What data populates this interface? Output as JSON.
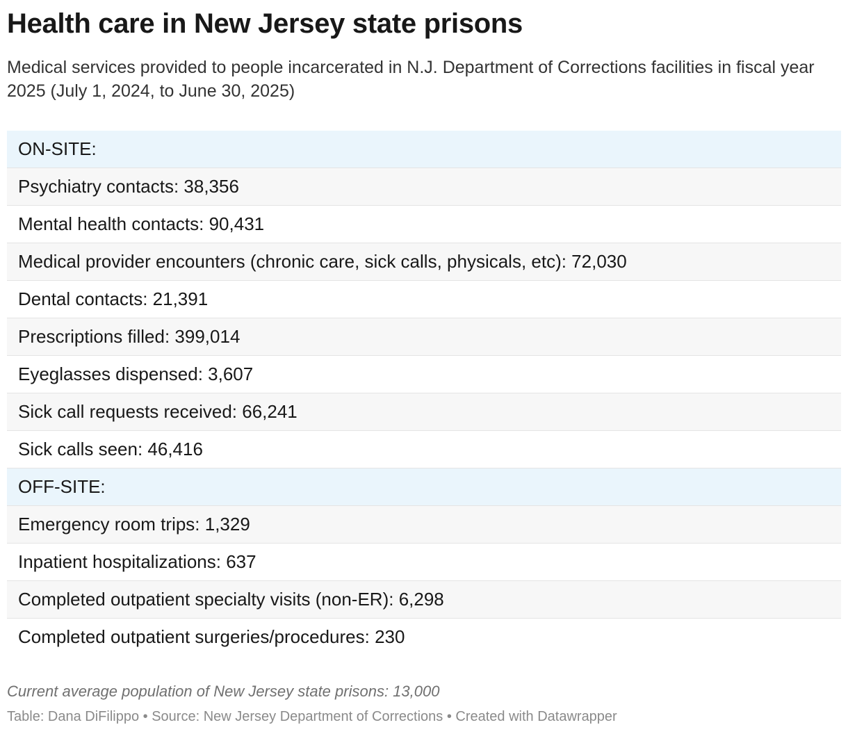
{
  "title": "Health care in New Jersey state prisons",
  "subtitle": "Medical services provided to people incarcerated in N.J. Department of Corrections facilities in fiscal year 2025 (July 1, 2024, to June 30, 2025)",
  "chart_data": {
    "type": "table",
    "rows": [
      {
        "kind": "section",
        "text": "ON-SITE:"
      },
      {
        "kind": "item",
        "text": "Psychiatry contacts: 38,356",
        "value": 38356
      },
      {
        "kind": "item",
        "text": "Mental health contacts: 90,431",
        "value": 90431
      },
      {
        "kind": "item",
        "text": "Medical provider encounters (chronic care, sick calls, physicals, etc): 72,030",
        "value": 72030
      },
      {
        "kind": "item",
        "text": "Dental contacts: 21,391",
        "value": 21391
      },
      {
        "kind": "item",
        "text": "Prescriptions filled: 399,014",
        "value": 399014
      },
      {
        "kind": "item",
        "text": "Eyeglasses dispensed: 3,607",
        "value": 3607
      },
      {
        "kind": "item",
        "text": "Sick call requests received: 66,241",
        "value": 66241
      },
      {
        "kind": "item",
        "text": "Sick calls seen: 46,416",
        "value": 46416
      },
      {
        "kind": "section",
        "text": "OFF-SITE:"
      },
      {
        "kind": "item",
        "text": "Emergency room trips: 1,329",
        "value": 1329
      },
      {
        "kind": "item",
        "text": "Inpatient hospitalizations: 637",
        "value": 637
      },
      {
        "kind": "item",
        "text": "Completed outpatient specialty visits (non-ER): 6,298",
        "value": 6298
      },
      {
        "kind": "item",
        "text": "Completed outpatient surgeries/procedures: 230",
        "value": 230
      }
    ],
    "colors": {
      "section_background": "#eaf5fc",
      "stripe_background": "#f7f7f7",
      "row_background": "#ffffff",
      "divider": "#e4e4e4"
    }
  },
  "footer": {
    "note": "Current average population of New Jersey state prisons: 13,000",
    "credits": "Table: Dana DiFilippo • Source: New Jersey Department of Corrections • Created with Datawrapper"
  }
}
